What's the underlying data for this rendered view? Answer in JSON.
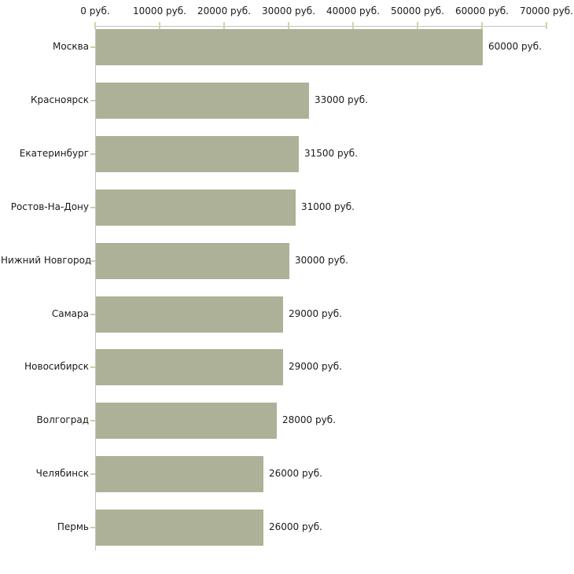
{
  "chart_data": {
    "type": "bar",
    "orientation": "horizontal",
    "title": "",
    "xlabel": "",
    "ylabel": "",
    "unit": "руб.",
    "categories": [
      "Москва",
      "Красноярск",
      "Екатеринбург",
      "Ростов-На-Дону",
      "Нижний Новгород",
      "Самара",
      "Новосибирск",
      "Волгоград",
      "Челябинск",
      "Пермь"
    ],
    "values": [
      60000,
      33000,
      31500,
      31000,
      30000,
      29000,
      29000,
      28000,
      26000,
      26000
    ],
    "value_labels": [
      "60000 руб.",
      "33000 руб.",
      "31500 руб.",
      "31000 руб.",
      "30000 руб.",
      "29000 руб.",
      "29000 руб.",
      "28000 руб.",
      "26000 руб.",
      "26000 руб."
    ],
    "x_ticks": [
      0,
      10000,
      20000,
      30000,
      40000,
      50000,
      60000,
      70000
    ],
    "x_tick_labels": [
      "0 руб.",
      "10000 руб.",
      "20000 руб.",
      "30000 руб.",
      "40000 руб.",
      "50000 руб.",
      "60000 руб.",
      "70000 руб."
    ],
    "xlim": [
      0,
      70000
    ],
    "grid": false,
    "legend": "none",
    "axis_position": "top-left",
    "colors": {
      "bar": "#adb197",
      "axis_line": "#c2c2c2",
      "tick": "#d4d4a4",
      "row_tick": "#cfcfa5",
      "text": "#1a1a1a",
      "background": "#ffffff"
    }
  }
}
